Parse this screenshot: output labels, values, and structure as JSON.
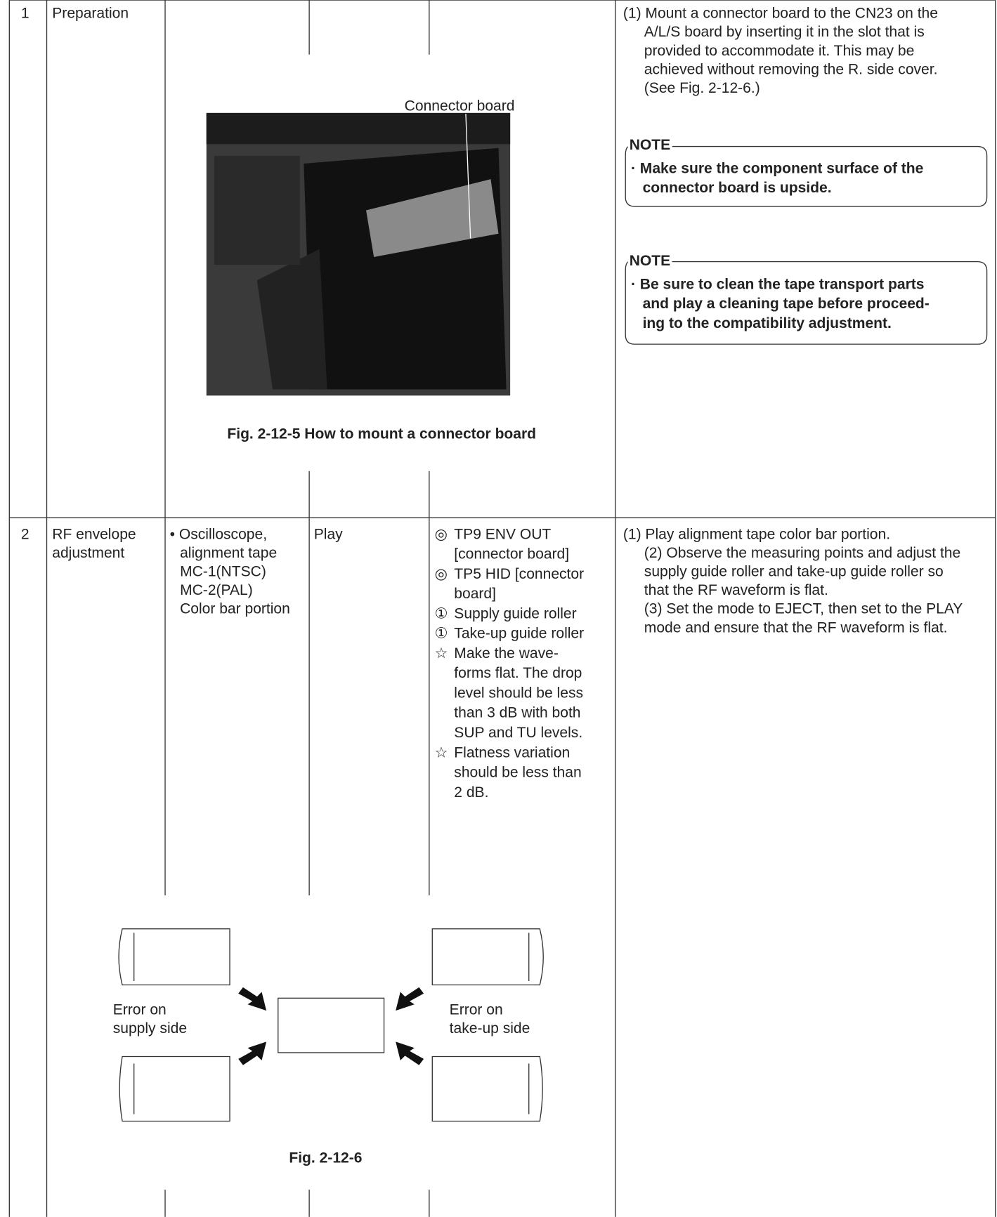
{
  "rows": [
    {
      "no": "1",
      "item": [
        "Preparation"
      ],
      "figure": {
        "callout": "Connector board",
        "caption": "Fig. 2-12-5  How to mount a connector board"
      },
      "procedure": [
        "(1) Mount a connector board to the CN23 on the",
        "A/L/S board by inserting it in the slot that is",
        "provided to accommodate it. This may be",
        "achieved without removing the R. side cover.",
        "(See Fig. 2-12-6.)"
      ],
      "notes": [
        {
          "label": "NOTE",
          "lines": [
            "· Make sure the component surface of the",
            "connector board is upside."
          ]
        },
        {
          "label": "NOTE",
          "lines": [
            "· Be sure to clean the tape transport parts",
            "and play a cleaning tape before proceed-",
            "ing to the compatibility adjustment."
          ]
        }
      ]
    },
    {
      "no": "2",
      "item": [
        "RF envelope",
        "adjustment"
      ],
      "equipment": [
        "• Oscilloscope,",
        "alignment tape",
        "MC-1(NTSC)",
        "MC-2(PAL)",
        "Color bar portion"
      ],
      "mode": "Play",
      "points": [
        {
          "mark": "◎",
          "lines": [
            "TP9 ENV OUT",
            "[connector board]"
          ]
        },
        {
          "mark": "◎",
          "lines": [
            "TP5 HID [connector",
            "board]"
          ]
        },
        {
          "mark": "①",
          "lines": [
            "Supply guide roller"
          ]
        },
        {
          "mark": "①",
          "lines": [
            "Take-up guide roller"
          ]
        },
        {
          "mark": "☆",
          "lines": [
            "Make the wave-",
            "forms flat. The drop",
            "level should be less",
            "than 3 dB with both",
            "SUP and TU levels."
          ]
        },
        {
          "mark": "☆",
          "lines": [
            "Flatness variation",
            "should be less than",
            "2 dB."
          ]
        }
      ],
      "procedure": [
        "(1) Play alignment tape color bar portion.",
        "(2) Observe the measuring points and adjust the",
        "supply guide roller and take-up guide roller so",
        "that the RF waveform is flat.",
        "(3) Set the mode to EJECT, then set to the PLAY",
        "mode and ensure that the RF waveform is flat."
      ],
      "figure": {
        "left": [
          "Error on",
          "supply side"
        ],
        "right": [
          "Error on",
          "take-up side"
        ],
        "caption": "Fig. 2-12-6"
      }
    }
  ]
}
